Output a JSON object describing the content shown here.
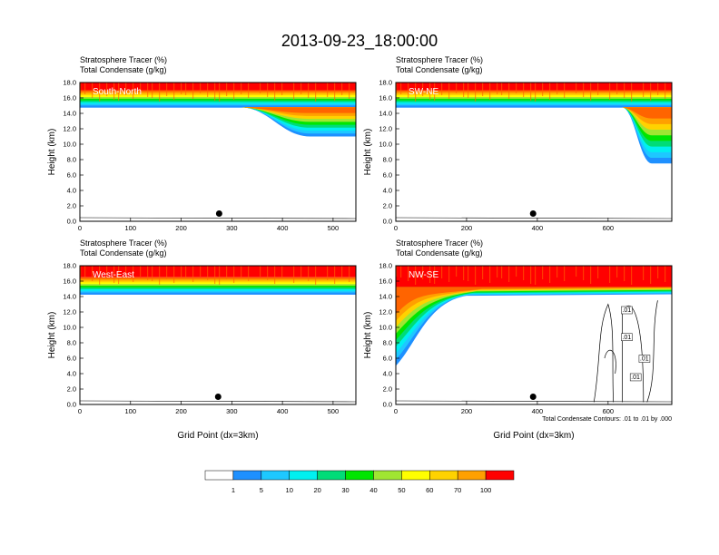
{
  "title": "2013-09-23_18:00:00",
  "colors": {
    "frame": "#000000",
    "contour": "#000000",
    "palette": [
      "#ffffff",
      "#1e90ff",
      "#1ec8ff",
      "#00f0f0",
      "#00dc78",
      "#00e600",
      "#a0e632",
      "#ffff00",
      "#ffd200",
      "#ffa000",
      "#ff6400",
      "#ff0000"
    ]
  },
  "chart_data": [
    {
      "type": "contour",
      "panel": "top-left",
      "label": "South-North",
      "header": [
        "Stratosphere Tracer   (%)",
        "Total Condensate   (g/kg)"
      ],
      "ylabel": "Height (km)",
      "xlabel": "",
      "xlim": [
        0,
        545
      ],
      "ylim": [
        0,
        18
      ],
      "xticks": [
        0,
        100,
        200,
        300,
        400,
        500
      ],
      "yticks": [
        "0.0",
        "2.0",
        "4.0",
        "6.0",
        "8.0",
        "10.0",
        "12.0",
        "14.0",
        "16.0",
        "18.0"
      ],
      "tracer_bottom_km": 14.8,
      "plume": {
        "x_start": 320,
        "x_end": 545,
        "bottom_km": 11.0
      },
      "marker": {
        "x": 275,
        "y": 1.0
      }
    },
    {
      "type": "contour",
      "panel": "top-right",
      "label": "SW-NE",
      "header": [
        "Stratosphere Tracer   (%)",
        "Total Condensate   (g/kg)"
      ],
      "ylabel": "Height (km)",
      "xlabel": "",
      "xlim": [
        0,
        780
      ],
      "ylim": [
        0,
        18
      ],
      "xticks": [
        0,
        200,
        400,
        600
      ],
      "yticks": [
        "0.0",
        "2.0",
        "4.0",
        "6.0",
        "8.0",
        "10.0",
        "12.0",
        "14.0",
        "16.0",
        "18.0"
      ],
      "tracer_bottom_km": 14.8,
      "plume": {
        "x_start": 640,
        "x_end": 780,
        "bottom_km": 7.5
      },
      "marker": {
        "x": 388,
        "y": 1.0
      }
    },
    {
      "type": "contour",
      "panel": "bottom-left",
      "label": "West-East",
      "header": [
        "Stratosphere Tracer   (%)",
        "Total Condensate   (g/kg)"
      ],
      "ylabel": "Height (km)",
      "xlabel": "Grid Point (dx=3km)",
      "xlim": [
        0,
        545
      ],
      "ylim": [
        0,
        18
      ],
      "xticks": [
        0,
        100,
        200,
        300,
        400,
        500
      ],
      "yticks": [
        "0.0",
        "2.0",
        "4.0",
        "6.0",
        "8.0",
        "10.0",
        "12.0",
        "14.0",
        "16.0",
        "18.0"
      ],
      "tracer_bottom_km": 14.3,
      "marker": {
        "x": 273,
        "y": 1.0
      }
    },
    {
      "type": "contour",
      "panel": "bottom-right",
      "label": "NW-SE",
      "header": [
        "Stratosphere Tracer   (%)",
        "Total Condensate   (g/kg)"
      ],
      "ylabel": "Height (km)",
      "xlabel": "Grid Point (dx=3km)",
      "xlim": [
        0,
        780
      ],
      "ylim": [
        0,
        18
      ],
      "xticks": [
        0,
        200,
        400,
        600
      ],
      "yticks": [
        "0.0",
        "2.0",
        "4.0",
        "6.0",
        "8.0",
        "10.0",
        "12.0",
        "14.0",
        "16.0",
        "18.0"
      ],
      "tracer_bottom_km": 5.0,
      "contour_labels": [
        ".01",
        ".01",
        ".01",
        ".01"
      ],
      "footnote": "Total Condensate Contours: .01 to .01 by .000",
      "marker": {
        "x": 388,
        "y": 1.0
      }
    }
  ],
  "colorbar": {
    "labels": [
      "1",
      "5",
      "10",
      "20",
      "30",
      "40",
      "50",
      "60",
      "70",
      "100"
    ]
  }
}
